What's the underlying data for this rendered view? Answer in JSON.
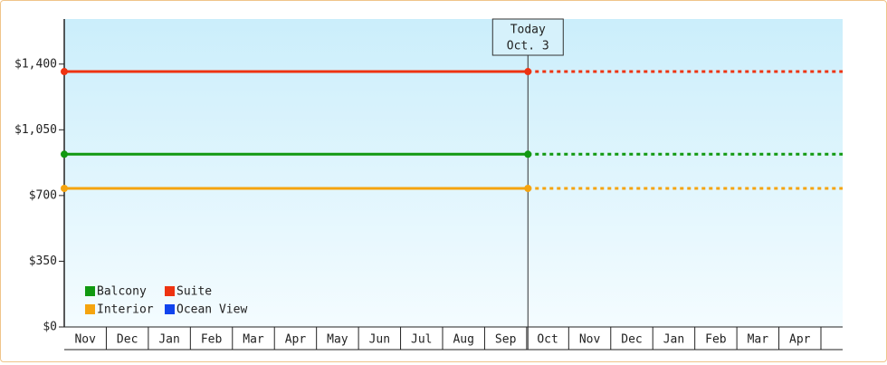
{
  "chart_data": {
    "type": "line",
    "categories": [
      "Nov",
      "Dec",
      "Jan",
      "Feb",
      "Mar",
      "Apr",
      "May",
      "Jun",
      "Jul",
      "Aug",
      "Sep",
      "Oct",
      "Nov",
      "Dec",
      "Jan",
      "Feb",
      "Mar",
      "Apr"
    ],
    "xlim": [
      0,
      18
    ],
    "ylim": [
      0,
      1640
    ],
    "yticks": [
      {
        "value": 0,
        "label": "$0"
      },
      {
        "value": 350,
        "label": "$350"
      },
      {
        "value": 700,
        "label": "$700"
      },
      {
        "value": 1050,
        "label": "$1,050"
      },
      {
        "value": 1400,
        "label": "$1,400"
      }
    ],
    "today": {
      "x": 11.03,
      "label": "Today",
      "date": "Oct. 3"
    },
    "series": [
      {
        "name": "Balcony",
        "color": "#119911",
        "value": 920
      },
      {
        "name": "Suite",
        "color": "#ee3311",
        "value": 1360
      },
      {
        "name": "Interior",
        "color": "#f5a40f",
        "value": 738
      },
      {
        "name": "Ocean View",
        "color": "#1144ee",
        "value": null
      }
    ]
  }
}
